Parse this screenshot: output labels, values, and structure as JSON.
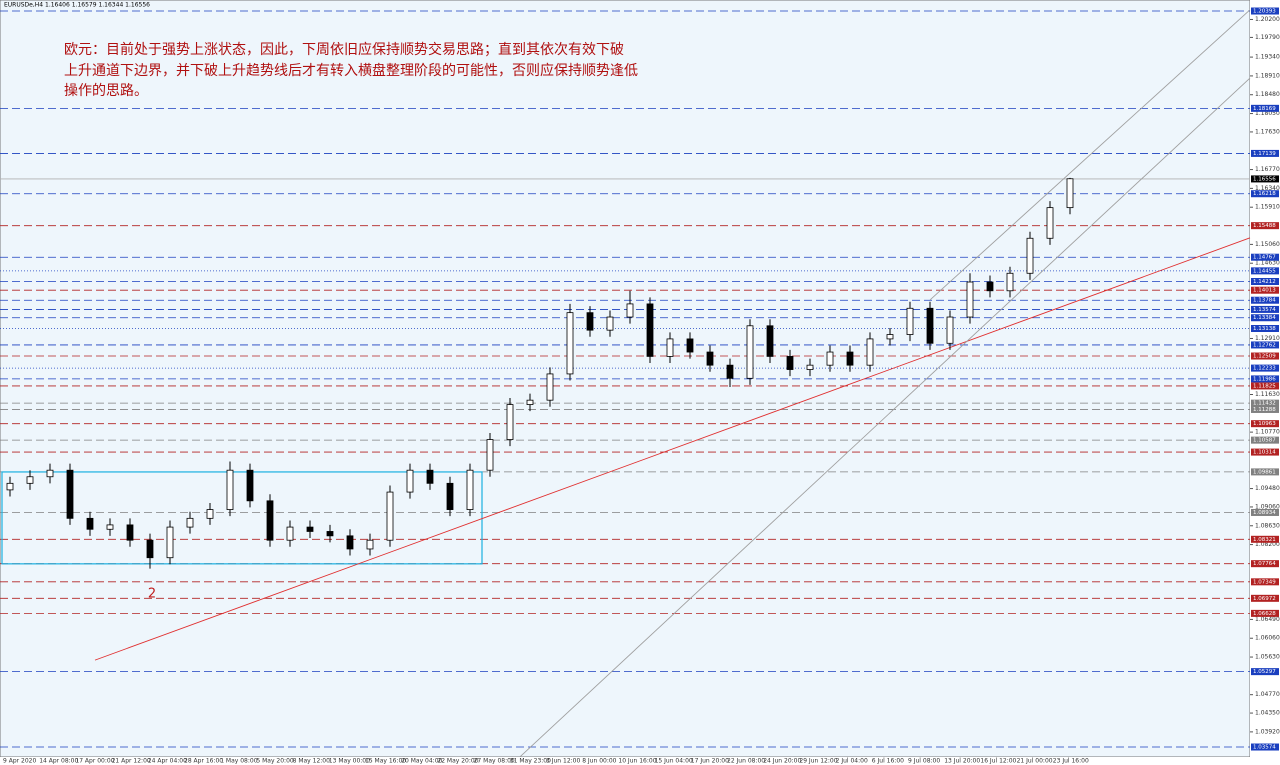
{
  "chart_data": {
    "type": "candlestick",
    "header": "EURUSDe,H4  1.16406 1.16579 1.16344 1.16556",
    "note": [
      "欧元：目前处于强势上涨状态，因此，下周依旧应保持顺势交易思路；直到其依次有效下破",
      "上升通道下边界，并下破上升趋势线后才有转入横盘整理阶段的可能性，否则应保持顺势逢低",
      "操作的思路。"
    ],
    "wave_label": "2",
    "open": [
      1.0945,
      1.096,
      1.0975,
      1.099,
      1.088,
      1.0855,
      1.0865,
      1.083,
      1.079,
      1.086,
      1.088,
      1.09,
      1.099,
      1.092,
      1.083,
      1.086,
      1.085,
      1.084,
      1.081,
      1.083,
      1.094,
      1.099,
      1.096,
      1.09,
      1.099,
      1.106,
      1.114,
      1.115,
      1.121,
      1.135,
      1.131,
      1.134,
      1.137,
      1.125,
      1.129,
      1.126,
      1.123,
      1.12,
      1.132,
      1.125,
      1.122,
      1.123,
      1.126,
      1.123,
      1.129,
      1.13,
      1.136,
      1.128,
      1.134,
      1.142,
      1.14,
      1.144,
      1.152,
      1.159
    ],
    "high": [
      1.0975,
      1.099,
      1.1005,
      1.1005,
      1.0895,
      1.088,
      1.088,
      1.0845,
      1.0875,
      1.0895,
      1.0915,
      1.101,
      1.1005,
      1.0935,
      1.0875,
      1.0875,
      1.0865,
      1.0855,
      1.0845,
      1.0955,
      1.1005,
      1.1005,
      1.0975,
      1.1005,
      1.1075,
      1.1155,
      1.1165,
      1.1225,
      1.137,
      1.1365,
      1.1355,
      1.14,
      1.1385,
      1.1305,
      1.1305,
      1.1275,
      1.1245,
      1.1335,
      1.1335,
      1.1265,
      1.1245,
      1.1275,
      1.1275,
      1.1305,
      1.1315,
      1.1375,
      1.1375,
      1.1355,
      1.144,
      1.1435,
      1.1455,
      1.1535,
      1.1605,
      1.1658
    ],
    "low": [
      1.093,
      1.0945,
      1.096,
      1.0865,
      1.084,
      1.084,
      1.0815,
      1.0765,
      1.0775,
      1.0845,
      1.0865,
      1.0885,
      1.0905,
      1.0815,
      1.0815,
      1.0835,
      1.0825,
      1.0795,
      1.0795,
      1.0815,
      1.0925,
      1.0945,
      1.0885,
      1.0885,
      1.0975,
      1.1045,
      1.1125,
      1.1135,
      1.1195,
      1.1295,
      1.1295,
      1.1325,
      1.1235,
      1.1235,
      1.1245,
      1.1215,
      1.118,
      1.1185,
      1.1235,
      1.1205,
      1.1205,
      1.1215,
      1.1215,
      1.1215,
      1.1275,
      1.1285,
      1.1265,
      1.1265,
      1.1325,
      1.1385,
      1.1385,
      1.1425,
      1.1505,
      1.1575
    ],
    "close": [
      1.096,
      1.0975,
      1.099,
      1.088,
      1.0855,
      1.0865,
      1.083,
      1.079,
      1.086,
      1.088,
      1.09,
      1.099,
      1.092,
      1.083,
      1.086,
      1.085,
      1.084,
      1.081,
      1.083,
      1.094,
      1.099,
      1.096,
      1.09,
      1.099,
      1.106,
      1.114,
      1.115,
      1.121,
      1.135,
      1.131,
      1.134,
      1.137,
      1.125,
      1.129,
      1.126,
      1.123,
      1.12,
      1.132,
      1.125,
      1.122,
      1.123,
      1.126,
      1.123,
      1.129,
      1.13,
      1.136,
      1.128,
      1.134,
      1.142,
      1.14,
      1.144,
      1.152,
      1.159,
      1.1656
    ],
    "ylim": [
      1.03346,
      1.20462
    ],
    "yticks": [
      {
        "value": 1.202,
        "label": "1.20200"
      },
      {
        "value": 1.1979,
        "label": "1.19790"
      },
      {
        "value": 1.1934,
        "label": "1.19340"
      },
      {
        "value": 1.1891,
        "label": "1.18910"
      },
      {
        "value": 1.1848,
        "label": "1.18480"
      },
      {
        "value": 1.1805,
        "label": "1.18050"
      },
      {
        "value": 1.1763,
        "label": "1.17630"
      },
      {
        "value": 1.1677,
        "label": "1.16770"
      },
      {
        "value": 1.1634,
        "label": "1.16340"
      },
      {
        "value": 1.1591,
        "label": "1.15910"
      },
      {
        "value": 1.1506,
        "label": "1.15060"
      },
      {
        "value": 1.1463,
        "label": "1.14630"
      },
      {
        "value": 1.1291,
        "label": "1.12910"
      },
      {
        "value": 1.1163,
        "label": "1.11630"
      },
      {
        "value": 1.1077,
        "label": "1.10770"
      },
      {
        "value": 1.0948,
        "label": "1.09480"
      },
      {
        "value": 1.0906,
        "label": "1.09060"
      },
      {
        "value": 1.0863,
        "label": "1.08630"
      },
      {
        "value": 1.082,
        "label": "1.08200"
      },
      {
        "value": 1.0649,
        "label": "1.06490"
      },
      {
        "value": 1.0606,
        "label": "1.06060"
      },
      {
        "value": 1.0563,
        "label": "1.05630"
      },
      {
        "value": 1.0477,
        "label": "1.04770"
      },
      {
        "value": 1.0435,
        "label": "1.04350"
      },
      {
        "value": 1.0392,
        "label": "1.03920"
      }
    ],
    "xticks": [
      "9 Apr 2020",
      "14 Apr 08:00",
      "17 Apr 00:00",
      "21 Apr 12:00",
      "24 Apr 04:00",
      "28 Apr 16:00",
      "1 May 08:00",
      "5 May 20:00",
      "8 May 12:00",
      "13 May 00:00",
      "15 May 16:00",
      "20 May 04:00",
      "22 May 20:00",
      "27 May 08:00",
      "31 May 23:00",
      "3 Jun 12:00",
      "8 Jun 00:00",
      "10 Jun 16:00",
      "15 Jun 04:00",
      "17 Jun 20:00",
      "22 Jun 08:00",
      "24 Jun 20:00",
      "29 Jun 12:00",
      "2 Jul 04:00",
      "6 Jul 16:00",
      "9 Jul 08:00",
      "13 Jul 20:00",
      "16 Jul 12:00",
      "21 Jul 00:00",
      "23 Jul 16:00"
    ],
    "current": {
      "value": 1.16556,
      "color": "#000000"
    },
    "levels": [
      {
        "value": 1.20393,
        "color": "#1a3fbf",
        "style": "dashed"
      },
      {
        "value": 1.18169,
        "color": "#1a3fbf",
        "style": "dashed"
      },
      {
        "value": 1.17139,
        "color": "#1a3fbf",
        "style": "dashed"
      },
      {
        "value": 1.16218,
        "color": "#1a3fbf",
        "style": "dashed"
      },
      {
        "value": 1.15488,
        "color": "#b22222",
        "style": "dashed"
      },
      {
        "value": 1.14767,
        "color": "#1a3fbf",
        "style": "dashed"
      },
      {
        "value": 1.14455,
        "color": "#1a3fbf",
        "style": "dotted"
      },
      {
        "value": 1.14212,
        "color": "#1a3fbf",
        "style": "dashed"
      },
      {
        "value": 1.14013,
        "color": "#b22222",
        "style": "dashed"
      },
      {
        "value": 1.13784,
        "color": "#1a3fbf",
        "style": "dashed"
      },
      {
        "value": 1.13574,
        "color": "#1a3fbf",
        "style": "dashed"
      },
      {
        "value": 1.13384,
        "color": "#1a3fbf",
        "style": "dashed"
      },
      {
        "value": 1.13138,
        "color": "#1a3fbf",
        "style": "dotted"
      },
      {
        "value": 1.12762,
        "color": "#1a3fbf",
        "style": "dashed"
      },
      {
        "value": 1.12509,
        "color": "#b22222",
        "style": "dashed"
      },
      {
        "value": 1.12233,
        "color": "#1a3fbf",
        "style": "dotted"
      },
      {
        "value": 1.11986,
        "color": "#1a3fbf",
        "style": "dashed"
      },
      {
        "value": 1.11825,
        "color": "#b22222",
        "style": "dashed"
      },
      {
        "value": 1.11432,
        "color": "#808080",
        "style": "dashed"
      },
      {
        "value": 1.11288,
        "color": "#808080",
        "style": "dashed"
      },
      {
        "value": 1.10963,
        "color": "#b22222",
        "style": "dashed"
      },
      {
        "value": 1.10587,
        "color": "#808080",
        "style": "dashed"
      },
      {
        "value": 1.10314,
        "color": "#b22222",
        "style": "dashed"
      },
      {
        "value": 1.09861,
        "color": "#808080",
        "style": "dashed"
      },
      {
        "value": 1.08934,
        "color": "#808080",
        "style": "dashed"
      },
      {
        "value": 1.08321,
        "color": "#b22222",
        "style": "dashed"
      },
      {
        "value": 1.07764,
        "color": "#b22222",
        "style": "dashed"
      },
      {
        "value": 1.07349,
        "color": "#b22222",
        "style": "dashed"
      },
      {
        "value": 1.06972,
        "color": "#b22222",
        "style": "dashed"
      },
      {
        "value": 1.06628,
        "color": "#b22222",
        "style": "dashed"
      },
      {
        "value": 1.05297,
        "color": "#1a3fbf",
        "style": "dashed"
      },
      {
        "value": 1.03574,
        "color": "#1a3fbf",
        "style": "dashed"
      }
    ],
    "trendlines": [
      {
        "x": [
          4.25,
          62
        ],
        "y": [
          1.0556,
          1.1521
        ],
        "color": "#e03030"
      },
      {
        "x": [
          25.5,
          62
        ],
        "y": [
          1.0335,
          1.1886
        ],
        "color": "#a0a0a0"
      },
      {
        "x": [
          46,
          62
        ],
        "y": [
          1.1379,
          1.2042
        ],
        "color": "#a0a0a0"
      }
    ],
    "box": {
      "x": [
        -0.4,
        23.6
      ],
      "y": [
        1.0776,
        1.0986
      ],
      "color": "#1ab0e0"
    }
  }
}
